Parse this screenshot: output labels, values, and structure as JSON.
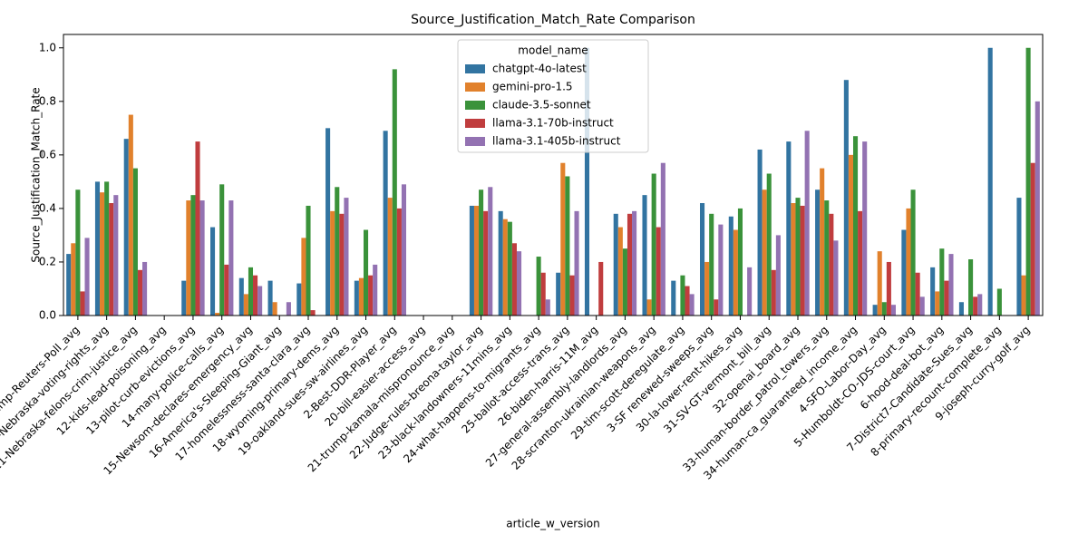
{
  "chart_data": {
    "type": "bar",
    "title": "Source_Justification_Match_Rate Comparison",
    "x_label": "article_w_version",
    "y_label": "Source_Justification_Match_Rate",
    "legend_title": "model_name",
    "legend_position": "upper center",
    "categories": [
      "1-Harris-Trump-Reuters-Poll_avg",
      "10-Nebraska-voting-rights_avg",
      "11-Nebraska-felons-crim-justice_avg",
      "12-kids-lead-poisoning_avg",
      "13-pilot-curb-evictions_avg",
      "14-many-police-calls_avg",
      "15-Newsom-declares-emergency_avg",
      "16-America's-Sleeping-Giant_avg",
      "17-homelessness-santa-clara_avg",
      "18-wyoming-primary-dems_avg",
      "19-oakland-sues-sw-airlines_avg",
      "2-Best-DDR-Player_avg",
      "20-bill-easier-access_avg",
      "21-trump-kamala-mispronounce_avg",
      "22-Judge-rules-breona-taylor_avg",
      "23-black-landowners-11mins_avg",
      "24-what-happens-to-migrants_avg",
      "25-ballot-access-trans_avg",
      "26-biden-harris-11M_avg",
      "27-general-assembly-landlords_avg",
      "28-scranton-ukrainian-weapons_avg",
      "29-tim-scott-deregulate_avg",
      "3-SF renewed-sweeps_avg",
      "30-la-lower-rent-hikes_avg",
      "31-SV-GT-vermont_bill_avg",
      "32-openai_board_avg",
      "33-human-border_patrol_towers_avg",
      "34-human-ca_guaranteed_income_avg",
      "4-SFO-Labor-Day_avg",
      "5-Humboldt-CO-JDS-court_avg",
      "6-hood-deal-bot_avg",
      "7-District7-Candidate-Sues_avg",
      "8-primary-recount-complete_avg",
      "9-joseph-curry-golf_avg"
    ],
    "series": [
      {
        "name": "chatgpt-4o-latest",
        "color": "#3274a1",
        "values": [
          0.23,
          0.5,
          0.66,
          0,
          0.13,
          0.33,
          0.14,
          0.13,
          0.12,
          0.7,
          0.13,
          0.69,
          0,
          0,
          0.41,
          0.39,
          0,
          0.16,
          1.0,
          0.38,
          0.45,
          0.13,
          0.42,
          0.37,
          0.62,
          0.65,
          0.47,
          0.88,
          0.04,
          0.32,
          0.18,
          0.05,
          1.0,
          0.44
        ]
      },
      {
        "name": "gemini-pro-1.5",
        "color": "#e1812c",
        "values": [
          0.27,
          0.46,
          0.75,
          0,
          0.43,
          0.01,
          0.08,
          0.05,
          0.29,
          0.39,
          0.14,
          0.44,
          0,
          0,
          0.41,
          0.36,
          0,
          0.57,
          0,
          0.33,
          0.06,
          0,
          0.2,
          0.32,
          0.47,
          0.42,
          0.55,
          0.6,
          0.24,
          0.4,
          0.09,
          0,
          0,
          0.15
        ]
      },
      {
        "name": "claude-3.5-sonnet",
        "color": "#3a923a",
        "values": [
          0.47,
          0.5,
          0.55,
          0,
          0.45,
          0.49,
          0.18,
          0,
          0.41,
          0.48,
          0.32,
          0.92,
          0,
          0,
          0.47,
          0.35,
          0.22,
          0.52,
          0,
          0.25,
          0.53,
          0.15,
          0.38,
          0.4,
          0.53,
          0.44,
          0.43,
          0.67,
          0.05,
          0.47,
          0.25,
          0.21,
          0.1,
          1.0
        ]
      },
      {
        "name": "llama-3.1-70b-instruct",
        "color": "#c03d3e",
        "values": [
          0.09,
          0.42,
          0.17,
          0,
          0.65,
          0.19,
          0.15,
          0,
          0.02,
          0.38,
          0.15,
          0.4,
          0,
          0,
          0.39,
          0.27,
          0.16,
          0.15,
          0.2,
          0.38,
          0.33,
          0.11,
          0.06,
          0,
          0.17,
          0.41,
          0.38,
          0.39,
          0.2,
          0.16,
          0.13,
          0.07,
          0,
          0.57
        ]
      },
      {
        "name": "llama-3.1-405b-instruct",
        "color": "#9372b2",
        "values": [
          0.29,
          0.45,
          0.2,
          0,
          0.43,
          0.43,
          0.11,
          0.05,
          0,
          0.44,
          0.19,
          0.49,
          0,
          0,
          0.48,
          0.24,
          0.06,
          0.39,
          0,
          0.39,
          0.57,
          0.08,
          0.34,
          0.18,
          0.3,
          0.69,
          0.28,
          0.65,
          0.04,
          0.07,
          0.23,
          0.08,
          0,
          0.8
        ]
      }
    ],
    "ylim": [
      0,
      1.05
    ],
    "yticks": [
      {
        "value": 0,
        "label": "0.0"
      },
      {
        "value": 0.2,
        "label": "0.2"
      },
      {
        "value": 0.4,
        "label": "0.4"
      },
      {
        "value": 0.6,
        "label": "0.6"
      },
      {
        "value": 0.8,
        "label": "0.8"
      },
      {
        "value": 1,
        "label": "1.0"
      }
    ]
  }
}
